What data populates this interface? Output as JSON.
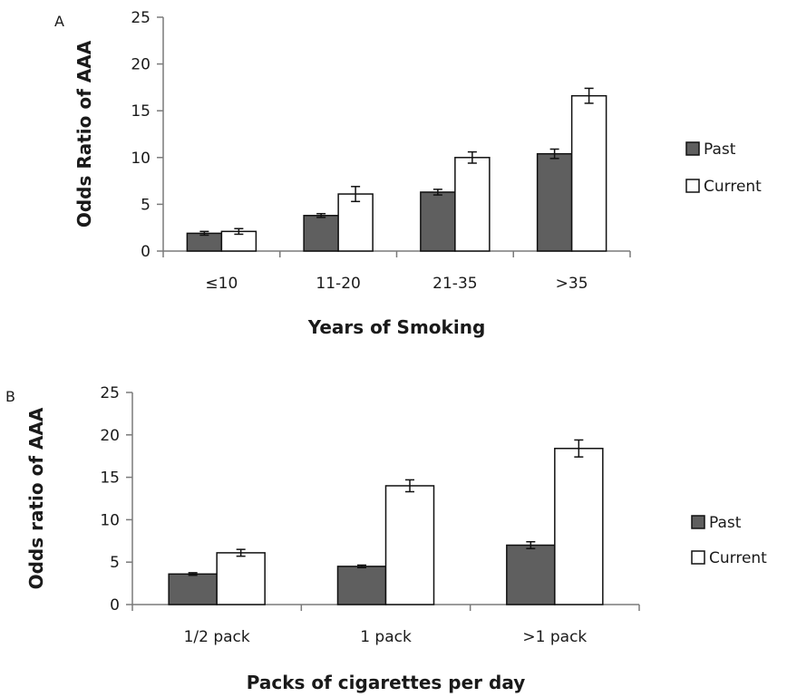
{
  "chart_data": [
    {
      "type": "bar",
      "panel_label": "A",
      "categories": [
        "≤10",
        "11-20",
        "21-35",
        ">35"
      ],
      "series": [
        {
          "name": "Past",
          "color": "#5f5f5f",
          "values": [
            1.9,
            3.8,
            6.3,
            10.4
          ],
          "errors": [
            0.2,
            0.2,
            0.3,
            0.5
          ]
        },
        {
          "name": "Current",
          "color": "#ffffff",
          "values": [
            2.1,
            6.1,
            10.0,
            16.6
          ],
          "errors": [
            0.3,
            0.8,
            0.6,
            0.8
          ]
        }
      ],
      "xlabel": "Years of Smoking",
      "ylabel": "Odds Ratio of AAA",
      "ylim": [
        0,
        25
      ],
      "yticks": [
        "0",
        "5",
        "10",
        "15",
        "20",
        "25"
      ],
      "grid": false,
      "legend_position": "right"
    },
    {
      "type": "bar",
      "panel_label": "B",
      "categories": [
        "1/2 pack",
        "1 pack",
        ">1 pack"
      ],
      "series": [
        {
          "name": "Past",
          "color": "#5f5f5f",
          "values": [
            3.6,
            4.5,
            7.0
          ],
          "errors": [
            0.15,
            0.15,
            0.4
          ]
        },
        {
          "name": "Current",
          "color": "#ffffff",
          "values": [
            6.1,
            14.0,
            18.4
          ],
          "errors": [
            0.4,
            0.7,
            1.0
          ]
        }
      ],
      "xlabel": "Packs of cigarettes per day",
      "ylabel": "Odds ratio of AAA",
      "ylim": [
        0,
        25
      ],
      "yticks": [
        "0",
        "5",
        "10",
        "15",
        "20",
        "25"
      ],
      "grid": false,
      "legend_position": "right"
    }
  ]
}
